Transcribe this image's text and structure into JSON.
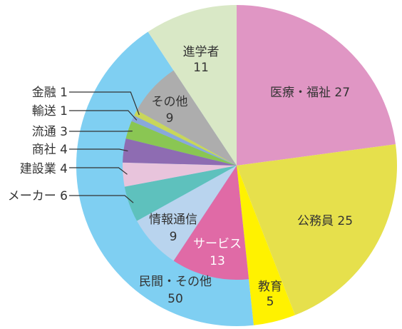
{
  "chart_data": [
    {
      "type": "pie",
      "title": "",
      "slices": [
        {
          "label": "医療・福祉",
          "value": 27,
          "color": "#e096c4"
        },
        {
          "label": "公務員",
          "value": 25,
          "color": "#e6e04c"
        },
        {
          "label": "教育",
          "value": 5,
          "color": "#fff200"
        },
        {
          "label": "民間・その他",
          "value": 50,
          "color": "#7fcff2"
        },
        {
          "label": "進学者",
          "value": 11,
          "color": "#d9e8c6"
        }
      ]
    },
    {
      "type": "pie",
      "title": "",
      "parent": "民間・その他",
      "slices": [
        {
          "label": "サービス",
          "value": 13,
          "color": "#e06aa6"
        },
        {
          "label": "情報通信",
          "value": 9,
          "color": "#b9d4ee"
        },
        {
          "label": "メーカー",
          "value": 6,
          "color": "#5ec1bd"
        },
        {
          "label": "建設業",
          "value": 4,
          "color": "#e8c4dc"
        },
        {
          "label": "商社",
          "value": 4,
          "color": "#8e6cb2"
        },
        {
          "label": "流通",
          "value": 3,
          "color": "#8ac653"
        },
        {
          "label": "輸送",
          "value": 1,
          "color": "#89a8dc"
        },
        {
          "label": "金融",
          "value": 1,
          "color": "#c9d65a"
        },
        {
          "label": "その他",
          "value": 9,
          "color": "#adadad"
        }
      ]
    }
  ]
}
